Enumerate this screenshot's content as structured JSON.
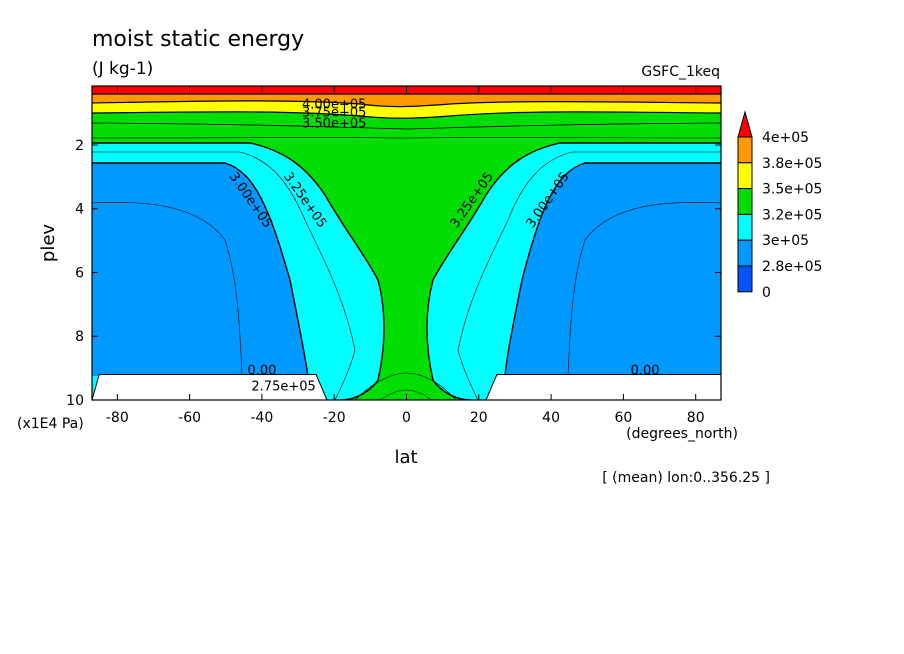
{
  "chart_data": {
    "type": "contour",
    "title": "moist static energy",
    "units": "(J kg-1)",
    "model": "GSFC_1keq",
    "xlabel": "lat",
    "xunits": "(degrees_north)",
    "ylabel": "plev",
    "yunits": "(x1E4 Pa)",
    "note": "[ (mean) lon:0..356.25 ]",
    "xlim": [
      -87,
      87
    ],
    "ylim": [
      10,
      0.15
    ],
    "x_ticks": [
      {
        "value": -80,
        "label": "-80"
      },
      {
        "value": -60,
        "label": "-60"
      },
      {
        "value": -40,
        "label": "-40"
      },
      {
        "value": -20,
        "label": "-20"
      },
      {
        "value": 0,
        "label": "0"
      },
      {
        "value": 20,
        "label": "20"
      },
      {
        "value": 40,
        "label": "40"
      },
      {
        "value": 60,
        "label": "60"
      },
      {
        "value": 80,
        "label": "80"
      }
    ],
    "y_ticks": [
      {
        "value": 2,
        "label": "2"
      },
      {
        "value": 4,
        "label": "4"
      },
      {
        "value": 6,
        "label": "6"
      },
      {
        "value": 8,
        "label": "8"
      },
      {
        "value": 10,
        "label": "10"
      }
    ],
    "colorbar": {
      "labels": [
        "4e+05",
        "3.8e+05",
        "3.5e+05",
        "3.2e+05",
        "3e+05",
        "2.8e+05",
        "0"
      ],
      "colors": [
        "#ff0000",
        "#ff9900",
        "#ffff00",
        "#00dd00",
        "#00ffff",
        "#0099ff",
        "#0055ff"
      ]
    },
    "contour_labels": [
      {
        "text": "4.00e+05",
        "lat": -20,
        "plev": 0.85,
        "rot": 0
      },
      {
        "text": "3.75e+05",
        "lat": -20,
        "plev": 1.1,
        "rot": 0
      },
      {
        "text": "3.50e+05",
        "lat": -20,
        "plev": 1.45,
        "rot": 0
      },
      {
        "text": "3.00e+05",
        "lat": -44,
        "plev": 3.8,
        "rot": 55
      },
      {
        "text": "3.25e+05",
        "lat": -29,
        "plev": 3.8,
        "rot": 55
      },
      {
        "text": "3.25e+05",
        "lat": 19,
        "plev": 3.8,
        "rot": -55
      },
      {
        "text": "3.00e+05",
        "lat": 40,
        "plev": 3.8,
        "rot": -55
      },
      {
        "text": "2.75e+05",
        "lat": -34,
        "plev": 9.7,
        "rot": 0
      },
      {
        "text": "0.00",
        "lat": -40,
        "plev": 9.2,
        "rot": 0
      },
      {
        "text": "0.00",
        "lat": 66,
        "plev": 9.2,
        "rot": 0
      }
    ],
    "terrain": [
      {
        "lat": [
          -87,
          -85,
          -25,
          -22,
          -87
        ],
        "plev": [
          10,
          9.2,
          9.2,
          10,
          10
        ]
      },
      {
        "lat": [
          22,
          25,
          87,
          87,
          22
        ],
        "plev": [
          10,
          9.2,
          9.2,
          10,
          10
        ]
      }
    ]
  }
}
